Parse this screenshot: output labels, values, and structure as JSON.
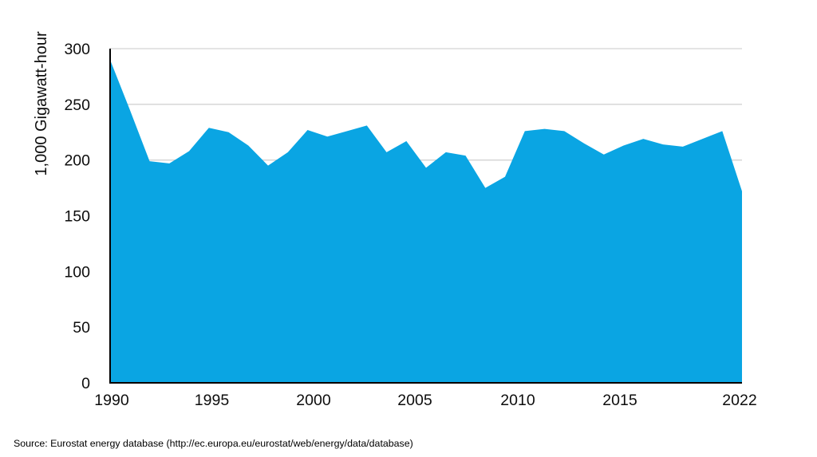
{
  "chart_data": {
    "type": "area",
    "title": "",
    "xlabel": "",
    "ylabel": "1,000 Gigawatt-hour",
    "x": [
      1990,
      1991,
      1992,
      1993,
      1994,
      1995,
      1996,
      1997,
      1998,
      1999,
      2000,
      2001,
      2002,
      2003,
      2004,
      2005,
      2006,
      2007,
      2008,
      2009,
      2010,
      2011,
      2012,
      2013,
      2014,
      2015,
      2016,
      2017,
      2018,
      2019,
      2020,
      2021,
      2022
    ],
    "values": [
      290,
      245,
      199,
      197,
      208,
      229,
      225,
      213,
      195,
      207,
      227,
      221,
      226,
      231,
      207,
      217,
      193,
      207,
      204,
      175,
      185,
      226,
      228,
      226,
      215,
      205,
      213,
      219,
      214,
      212,
      219,
      226,
      172
    ],
    "ylim": [
      0,
      300
    ],
    "yticks": [
      0,
      50,
      100,
      150,
      200,
      250,
      300
    ],
    "xtick_labels": [
      "1990",
      "1995",
      "2000",
      "2005",
      "2010",
      "2015",
      "2022"
    ],
    "xtick_years": [
      1990,
      1995,
      2000,
      2005,
      2010,
      2015,
      2022
    ],
    "grid": "horizontal",
    "legend": "none",
    "colors": {
      "area_fill": "#0aa5e3",
      "gridline": "#d3d3d3",
      "axis_line": "#000000",
      "tick_text": "#0d0d0d"
    },
    "source": "Source: Eurostat energy database (http://ec.europa.eu/eurostat/web/energy/data/database)"
  }
}
